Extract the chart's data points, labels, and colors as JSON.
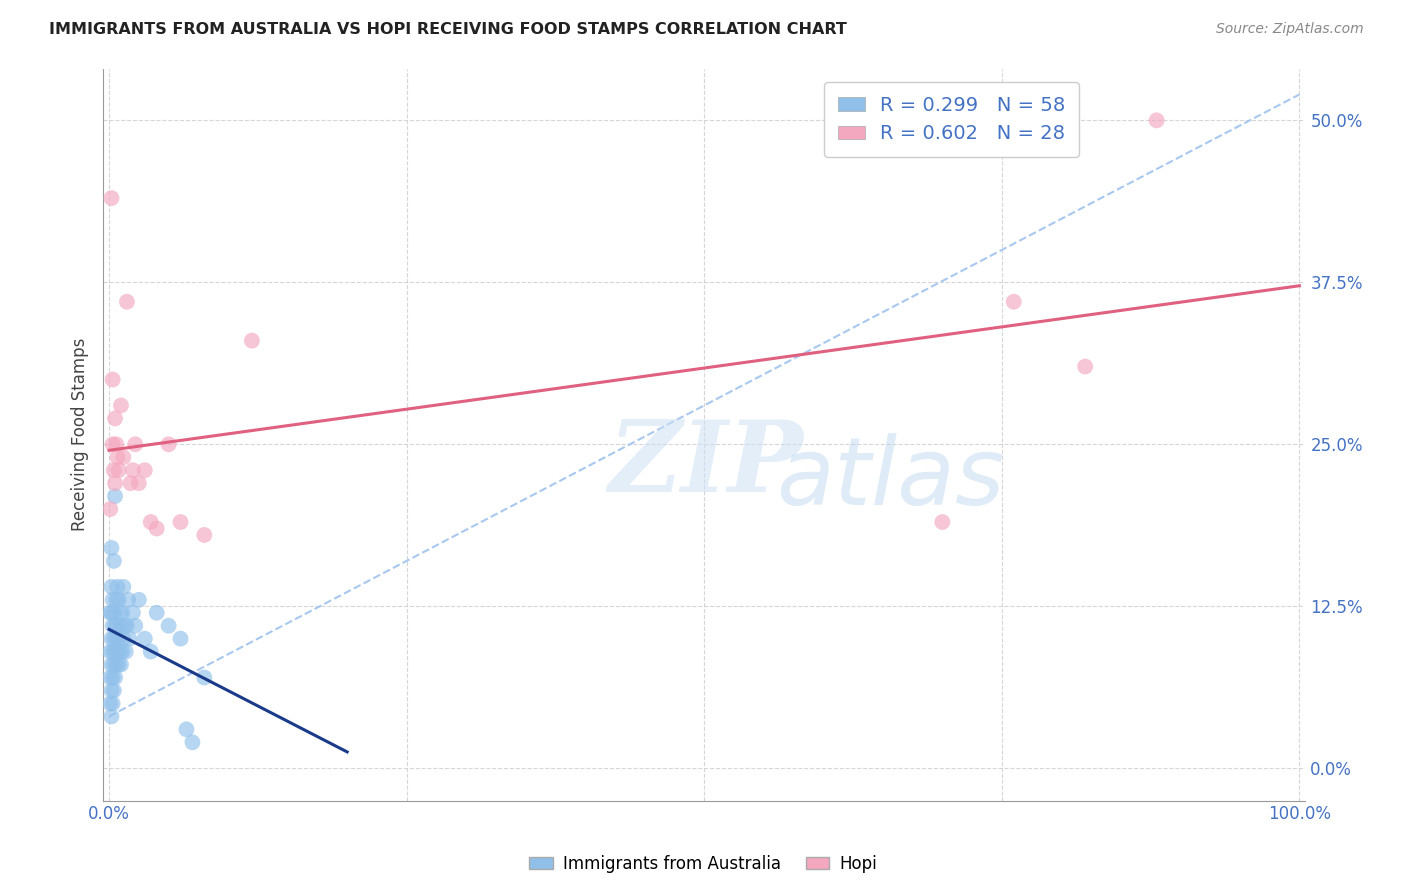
{
  "title": "IMMIGRANTS FROM AUSTRALIA VS HOPI RECEIVING FOOD STAMPS CORRELATION CHART",
  "source": "Source: ZipAtlas.com",
  "ylabel": "Receiving Food Stamps",
  "legend_label1": "Immigrants from Australia",
  "legend_label2": "Hopi",
  "R1": 0.299,
  "N1": 58,
  "R2": 0.602,
  "N2": 28,
  "blue_color": "#90c0ea",
  "pink_color": "#f4a8c0",
  "blue_line_color": "#1a3a8a",
  "pink_line_color": "#e06080",
  "dashed_color": "#a8c8f0",
  "blue_points_x": [
    0.001,
    0.001,
    0.001,
    0.001,
    0.002,
    0.002,
    0.002,
    0.002,
    0.002,
    0.002,
    0.002,
    0.003,
    0.003,
    0.003,
    0.003,
    0.003,
    0.004,
    0.004,
    0.004,
    0.004,
    0.004,
    0.005,
    0.005,
    0.005,
    0.005,
    0.006,
    0.006,
    0.006,
    0.007,
    0.007,
    0.007,
    0.008,
    0.008,
    0.008,
    0.009,
    0.009,
    0.01,
    0.01,
    0.011,
    0.011,
    0.012,
    0.012,
    0.013,
    0.014,
    0.015,
    0.016,
    0.017,
    0.02,
    0.022,
    0.025,
    0.03,
    0.035,
    0.04,
    0.05,
    0.06,
    0.065,
    0.07,
    0.08
  ],
  "blue_points_y": [
    0.05,
    0.07,
    0.09,
    0.12,
    0.04,
    0.06,
    0.08,
    0.1,
    0.12,
    0.14,
    0.17,
    0.05,
    0.07,
    0.09,
    0.11,
    0.13,
    0.06,
    0.08,
    0.1,
    0.12,
    0.16,
    0.07,
    0.09,
    0.11,
    0.21,
    0.08,
    0.1,
    0.13,
    0.09,
    0.11,
    0.14,
    0.08,
    0.1,
    0.13,
    0.09,
    0.12,
    0.08,
    0.11,
    0.09,
    0.12,
    0.1,
    0.14,
    0.11,
    0.09,
    0.11,
    0.13,
    0.1,
    0.12,
    0.11,
    0.13,
    0.1,
    0.09,
    0.12,
    0.11,
    0.1,
    0.03,
    0.02,
    0.07
  ],
  "pink_points_x": [
    0.001,
    0.002,
    0.003,
    0.003,
    0.004,
    0.005,
    0.005,
    0.006,
    0.007,
    0.008,
    0.01,
    0.012,
    0.015,
    0.018,
    0.02,
    0.022,
    0.025,
    0.03,
    0.035,
    0.04,
    0.05,
    0.06,
    0.08,
    0.12,
    0.7,
    0.76,
    0.82,
    0.88
  ],
  "pink_points_y": [
    0.2,
    0.44,
    0.25,
    0.3,
    0.23,
    0.22,
    0.27,
    0.25,
    0.24,
    0.23,
    0.28,
    0.24,
    0.36,
    0.22,
    0.23,
    0.25,
    0.22,
    0.23,
    0.19,
    0.185,
    0.25,
    0.19,
    0.18,
    0.33,
    0.19,
    0.36,
    0.31,
    0.5
  ],
  "xlim": [
    -0.005,
    1.005
  ],
  "ylim": [
    -0.025,
    0.54
  ],
  "xtick_positions": [
    0.0,
    0.25,
    0.5,
    0.75,
    1.0
  ],
  "xtick_labels_show": [
    "0.0%",
    "",
    "",
    "",
    "100.0%"
  ],
  "ytick_values": [
    0.0,
    0.125,
    0.25,
    0.375,
    0.5
  ],
  "ytick_labels": [
    "0.0%",
    "12.5%",
    "25.0%",
    "37.5%",
    "50.0%"
  ]
}
